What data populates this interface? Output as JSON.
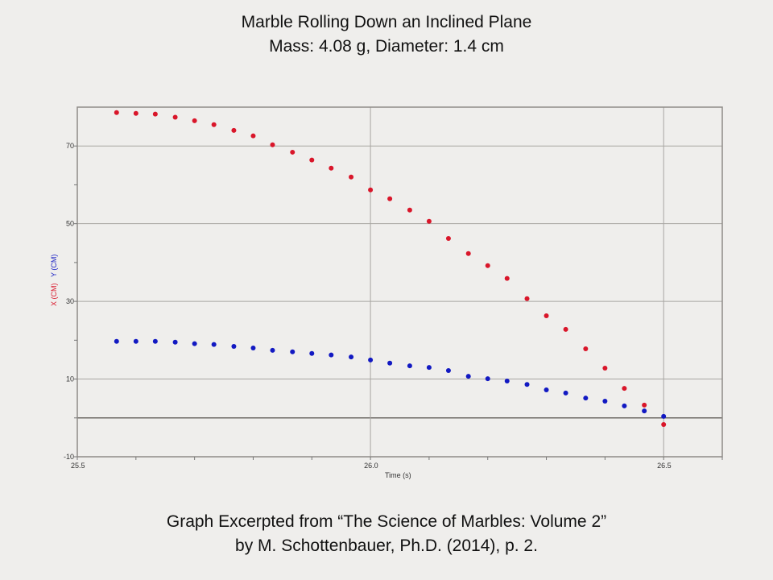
{
  "header": {
    "title": "Marble Rolling Down an Inclined Plane",
    "subtitle": "Mass:  4.08 g, Diameter: 1.4 cm"
  },
  "footer": {
    "line1": "Graph Excerpted from “The Science of Marbles: Volume 2”",
    "line2": "by M. Schottenbauer, Ph.D. (2014), p. 2."
  },
  "chart_data": {
    "type": "scatter",
    "title": "Marble Rolling Down an Inclined Plane",
    "xlabel": "Time (s)",
    "ylabel_parts": [
      "X (CM)",
      "Y (CM)"
    ],
    "xlim": [
      25.5,
      26.6
    ],
    "ylim": [
      -10,
      80
    ],
    "xticks": [
      "25.5",
      "26.0",
      "26.5"
    ],
    "yticks": [
      "-10",
      "10",
      "30",
      "50",
      "70"
    ],
    "grid": true,
    "x": [
      25.567,
      25.6,
      25.633,
      25.667,
      25.7,
      25.733,
      25.767,
      25.8,
      25.833,
      25.867,
      25.9,
      25.933,
      25.967,
      26.0,
      26.033,
      26.067,
      26.1,
      26.133,
      26.167,
      26.2,
      26.233,
      26.267,
      26.3,
      26.333,
      26.367,
      26.4,
      26.433,
      26.467,
      26.5
    ],
    "series": [
      {
        "name": "X (CM)",
        "color": "#d9162a",
        "values": [
          78.6,
          78.4,
          78.2,
          77.4,
          76.5,
          75.5,
          74.0,
          72.6,
          70.3,
          68.4,
          66.4,
          64.3,
          62.0,
          58.7,
          56.4,
          53.5,
          50.6,
          46.2,
          42.3,
          39.2,
          35.9,
          30.7,
          26.3,
          22.8,
          17.8,
          12.8,
          7.6,
          3.3,
          -1.7
        ]
      },
      {
        "name": "Y (CM)",
        "color": "#1219c2",
        "values": [
          19.7,
          19.7,
          19.7,
          19.5,
          19.1,
          18.9,
          18.4,
          18.0,
          17.4,
          17.0,
          16.6,
          16.2,
          15.7,
          14.9,
          14.1,
          13.4,
          13.0,
          12.2,
          10.7,
          10.1,
          9.5,
          8.6,
          7.2,
          6.4,
          5.1,
          4.3,
          3.1,
          1.8,
          0.4
        ]
      }
    ]
  }
}
